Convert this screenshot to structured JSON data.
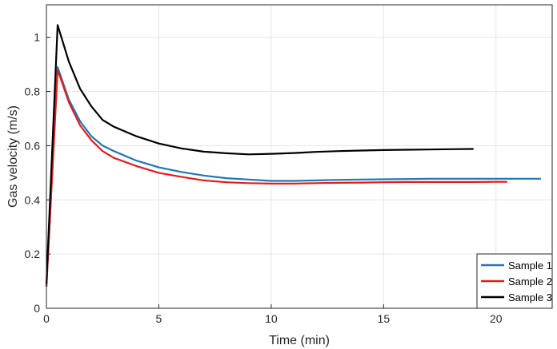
{
  "chart_data": {
    "type": "line",
    "title": "",
    "xlabel": "Time (min)",
    "ylabel": "Gas velocity (m/s)",
    "xlim": [
      0,
      22.5
    ],
    "ylim": [
      0,
      1.12
    ],
    "xticks": [
      0,
      5,
      10,
      15,
      20
    ],
    "yticks": [
      0,
      0.2,
      0.4,
      0.6,
      0.8,
      1
    ],
    "grid": true,
    "legend": "bottom-right",
    "series": [
      {
        "name": "Sample 1",
        "color": "#1f77b4",
        "x": [
          0,
          0.5,
          1,
          1.5,
          2,
          2.5,
          3,
          4,
          5,
          6,
          7,
          8,
          9,
          10,
          11,
          12,
          13,
          14,
          15,
          16,
          17,
          18,
          19,
          20,
          21,
          22
        ],
        "y": [
          0.08,
          0.89,
          0.77,
          0.69,
          0.635,
          0.6,
          0.58,
          0.545,
          0.52,
          0.503,
          0.49,
          0.48,
          0.475,
          0.47,
          0.47,
          0.472,
          0.474,
          0.475,
          0.476,
          0.477,
          0.478,
          0.478,
          0.478,
          0.478,
          0.478,
          0.478
        ]
      },
      {
        "name": "Sample 2",
        "color": "#e41a1c",
        "x": [
          0,
          0.5,
          1,
          1.5,
          2,
          2.5,
          3,
          4,
          5,
          6,
          7,
          8,
          9,
          10,
          11,
          12,
          13,
          14,
          15,
          16,
          17,
          18,
          19,
          20,
          20.5
        ],
        "y": [
          0.08,
          0.88,
          0.76,
          0.675,
          0.62,
          0.58,
          0.555,
          0.525,
          0.5,
          0.485,
          0.472,
          0.465,
          0.462,
          0.46,
          0.46,
          0.462,
          0.463,
          0.464,
          0.465,
          0.466,
          0.466,
          0.466,
          0.466,
          0.467,
          0.467
        ]
      },
      {
        "name": "Sample 3",
        "color": "#000000",
        "x": [
          0,
          0.5,
          1,
          1.5,
          2,
          2.5,
          3,
          4,
          5,
          6,
          7,
          8,
          9,
          10,
          11,
          12,
          13,
          14,
          15,
          16,
          17,
          18,
          19
        ],
        "y": [
          0.09,
          1.045,
          0.91,
          0.81,
          0.745,
          0.695,
          0.67,
          0.635,
          0.608,
          0.59,
          0.578,
          0.572,
          0.568,
          0.57,
          0.573,
          0.577,
          0.58,
          0.582,
          0.584,
          0.585,
          0.586,
          0.587,
          0.588
        ]
      }
    ]
  }
}
